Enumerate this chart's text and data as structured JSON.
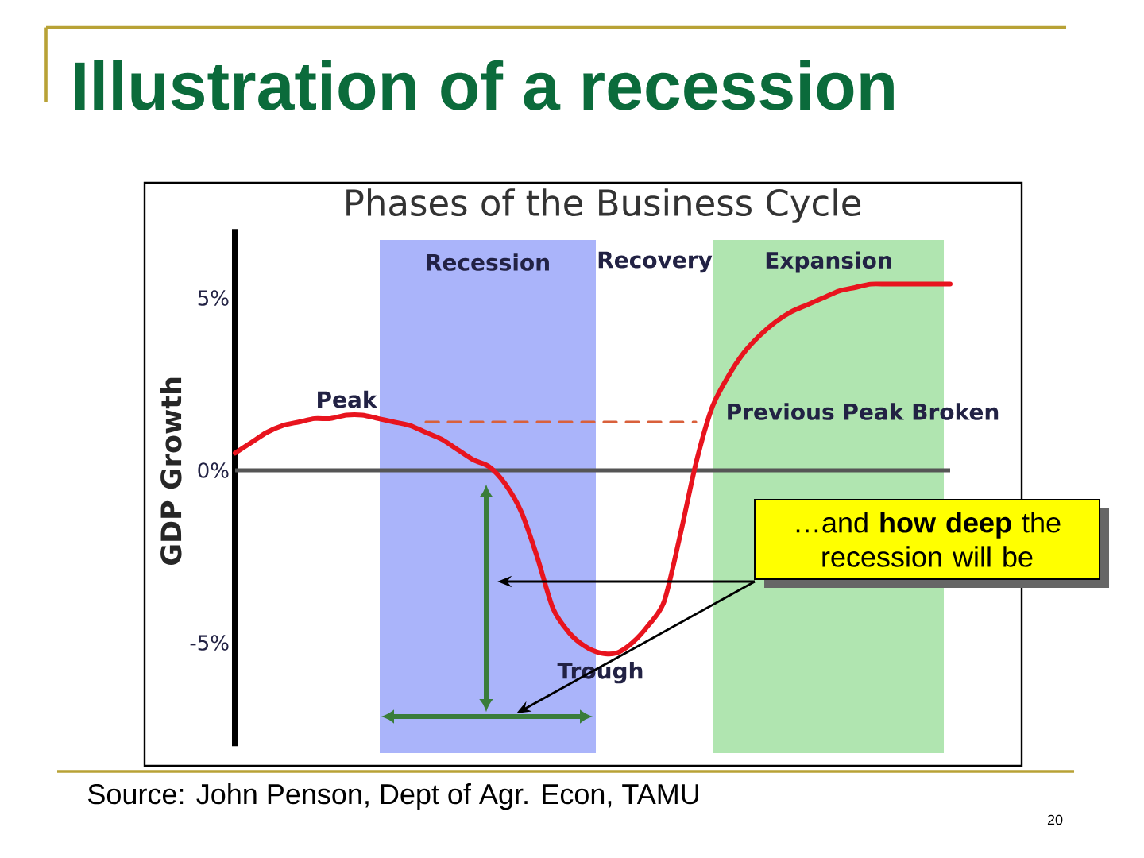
{
  "chart_data": {
    "type": "line",
    "title": "Illustration of a recession",
    "subtitle": "Phases of the Business Cycle",
    "ylabel": "GDP Growth",
    "categories": [
      null,
      null,
      null,
      null,
      null,
      null,
      null,
      null,
      null,
      null,
      null,
      null,
      null,
      null,
      null,
      null,
      null,
      null,
      null,
      null,
      null,
      null,
      null,
      null,
      null,
      null,
      null,
      null,
      null,
      null,
      null,
      null,
      null,
      null,
      null,
      null,
      null,
      null,
      null,
      null,
      null,
      null,
      null,
      null,
      null,
      null
    ],
    "series": [
      {
        "color": "#e8141e",
        "values": [
          0.5,
          0.8,
          1.1,
          1.3,
          1.4,
          1.5,
          1.5,
          1.6,
          1.6,
          1.5,
          1.4,
          1.3,
          1.1,
          0.9,
          0.6,
          0.3,
          0.1,
          -0.4,
          -1.2,
          -2.5,
          -4.0,
          -4.7,
          -5.1,
          -5.3,
          -5.3,
          -5.0,
          -4.5,
          -3.8,
          -1.9,
          0.2,
          1.8,
          2.7,
          3.4,
          3.9,
          4.3,
          4.6,
          4.8,
          5.0,
          5.2,
          5.3,
          5.4,
          5.4,
          5.4,
          5.4,
          5.4,
          5.4
        ]
      },
      {
        "name": "Previous Peak Broken",
        "type": "line",
        "line_style": "dashed",
        "color": "#d9603b",
        "values": [
          null,
          null,
          null,
          null,
          null,
          null,
          null,
          null,
          null,
          null,
          null,
          null,
          1.4,
          1.4,
          1.4,
          1.4,
          1.4,
          1.4,
          1.4,
          1.4,
          1.4,
          1.4,
          1.4,
          1.4,
          1.4,
          1.4,
          1.4,
          1.4,
          1.4,
          1.4,
          null,
          null,
          null,
          null,
          null,
          null,
          null,
          null,
          null,
          null,
          null,
          null,
          null,
          null,
          null,
          null
        ]
      }
    ],
    "ylim": [
      -8,
      7
    ],
    "yticks": [
      {
        "value": 5,
        "label": "5%"
      },
      {
        "value": 0,
        "label": "0%"
      },
      {
        "value": -5,
        "label": "-5%"
      }
    ],
    "tick_labels": "y",
    "ref_lines": [
      {
        "axis": "y",
        "value": 0,
        "color": "#555555"
      }
    ],
    "annotations": [
      "Recession",
      "Recovery",
      "Expansion",
      {
        "text": "Peak",
        "y": 1.6
      },
      "…and **how deep** the recession will be",
      {
        "text": "Trough",
        "y": -5.3
      },
      "Source: John Penson, Dept of Agr. Econ, TAMU",
      "20"
    ]
  }
}
